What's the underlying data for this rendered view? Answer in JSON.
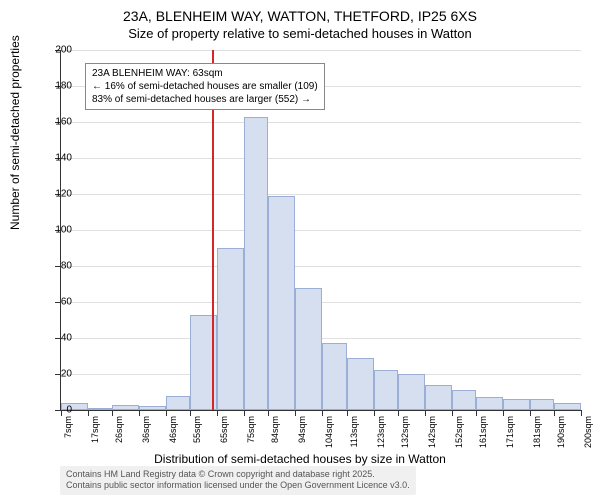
{
  "title_main": "23A, BLENHEIM WAY, WATTON, THETFORD, IP25 6XS",
  "title_sub": "Size of property relative to semi-detached houses in Watton",
  "y_axis_label": "Number of semi-detached properties",
  "x_axis_label": "Distribution of semi-detached houses by size in Watton",
  "annotation_title": "23A BLENHEIM WAY: 63sqm",
  "annotation_line1": "← 16% of semi-detached houses are smaller (109)",
  "annotation_line2": "83% of semi-detached houses are larger (552) →",
  "footer_line1": "Contains HM Land Registry data © Crown copyright and database right 2025.",
  "footer_line2": "Contains public sector information licensed under the Open Government Licence v3.0.",
  "chart": {
    "type": "histogram",
    "background_color": "#ffffff",
    "grid_color": "#e0e0e0",
    "bar_fill": "#d6dff0",
    "bar_border": "#9aaed6",
    "ref_line_color": "#d62728",
    "ref_value": 63,
    "ylim": [
      0,
      200
    ],
    "ytick_step": 20,
    "y_ticks": [
      0,
      20,
      40,
      60,
      80,
      100,
      120,
      140,
      160,
      180,
      200
    ],
    "x_ticks": [
      "7sqm",
      "17sqm",
      "26sqm",
      "36sqm",
      "46sqm",
      "55sqm",
      "65sqm",
      "75sqm",
      "84sqm",
      "94sqm",
      "104sqm",
      "113sqm",
      "123sqm",
      "132sqm",
      "142sqm",
      "152sqm",
      "161sqm",
      "171sqm",
      "181sqm",
      "190sqm",
      "200sqm"
    ],
    "bin_edges": [
      7,
      17,
      26,
      36,
      46,
      55,
      65,
      75,
      84,
      94,
      104,
      113,
      123,
      132,
      142,
      152,
      161,
      171,
      181,
      190,
      200
    ],
    "values": [
      4,
      0,
      3,
      2,
      8,
      53,
      90,
      163,
      119,
      68,
      37,
      29,
      22,
      20,
      14,
      11,
      7,
      6,
      6,
      4
    ],
    "title_fontsize": 14,
    "subtitle_fontsize": 13,
    "axis_label_fontsize": 12,
    "tick_fontsize": 10,
    "annotation_fontsize": 10
  }
}
